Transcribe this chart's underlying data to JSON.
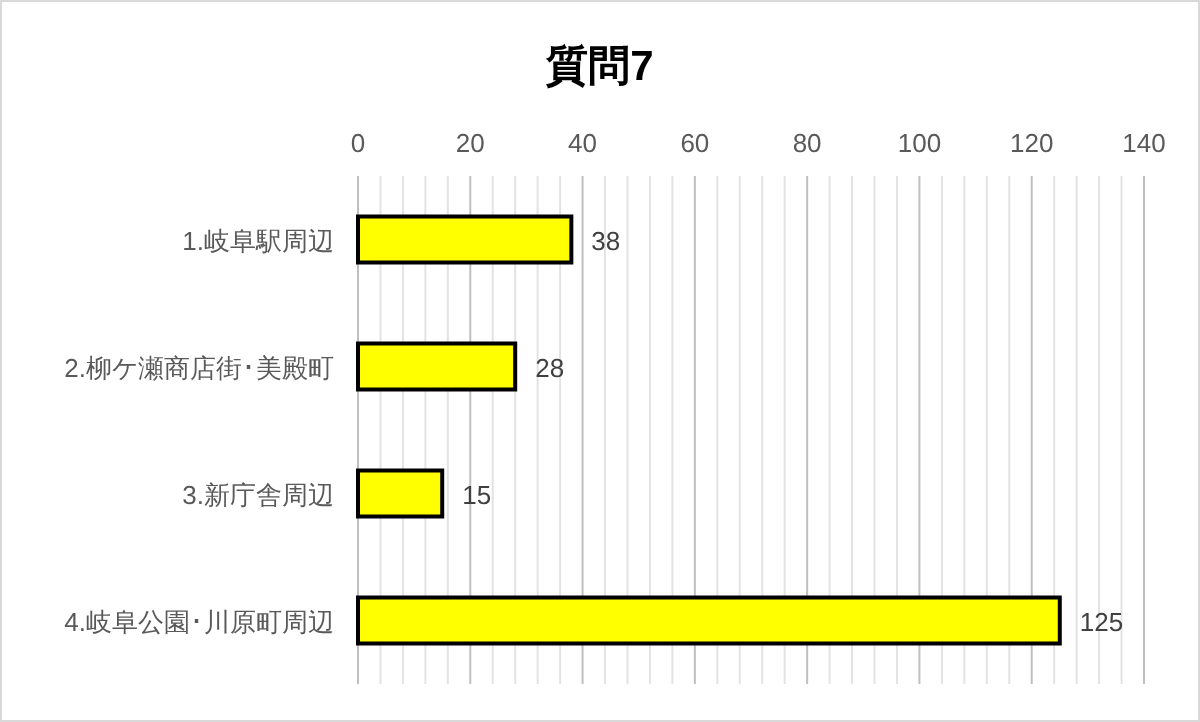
{
  "chart_data": {
    "type": "bar",
    "orientation": "horizontal",
    "title": "質問7",
    "categories": [
      "1.岐阜駅周辺",
      "2.柳ケ瀬商店街･美殿町",
      "3.新庁舎周辺",
      "4.岐阜公園･川原町周辺"
    ],
    "values": [
      38,
      28,
      15,
      125
    ],
    "color": "#ffff00",
    "data_labels": true,
    "grid": true,
    "xlim": [
      0,
      140
    ],
    "xticks": [
      0,
      {
        "value": 4,
        "label": null
      },
      {
        "value": 8,
        "label": null
      },
      {
        "value": 12,
        "label": null
      },
      {
        "value": 16,
        "label": null
      },
      20,
      {
        "value": 24,
        "label": null
      },
      {
        "value": 28,
        "label": null
      },
      {
        "value": 32,
        "label": null
      },
      {
        "value": 36,
        "label": null
      },
      40,
      {
        "value": 44,
        "label": null
      },
      {
        "value": 48,
        "label": null
      },
      {
        "value": 52,
        "label": null
      },
      {
        "value": 56,
        "label": null
      },
      60,
      {
        "value": 64,
        "label": null
      },
      {
        "value": 68,
        "label": null
      },
      {
        "value": 72,
        "label": null
      },
      {
        "value": 76,
        "label": null
      },
      80,
      {
        "value": 84,
        "label": null
      },
      {
        "value": 88,
        "label": null
      },
      {
        "value": 92,
        "label": null
      },
      {
        "value": 96,
        "label": null
      },
      100,
      {
        "value": 104,
        "label": null
      },
      {
        "value": 108,
        "label": null
      },
      {
        "value": 112,
        "label": null
      },
      {
        "value": 116,
        "label": null
      },
      120,
      {
        "value": 124,
        "label": null
      },
      {
        "value": 128,
        "label": null
      },
      {
        "value": 132,
        "label": null
      },
      {
        "value": 136,
        "label": null
      },
      140
    ]
  }
}
